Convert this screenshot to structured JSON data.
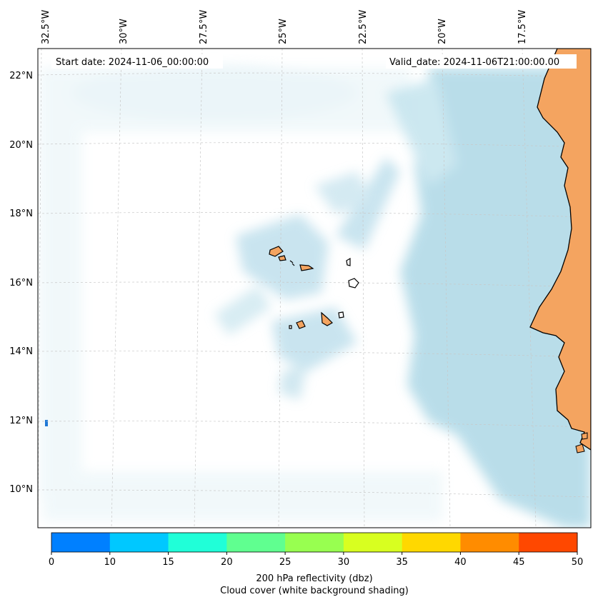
{
  "map": {
    "start_date_label": "Start date: 2024-11-06_00:00:00",
    "valid_date_label": "Valid_date: 2024-11-06T21:00:00.00",
    "lon_labels": [
      "32.5°W",
      "30°W",
      "27.5°W",
      "25°W",
      "22.5°W",
      "20°W",
      "17.5°W"
    ],
    "lat_labels": [
      "22°N",
      "20°N",
      "18°N",
      "16°N",
      "14°N",
      "12°N",
      "10°N"
    ],
    "land_color": "#f4a460",
    "cloud_color": "#add8e6",
    "ocean_color": "#ffffff"
  },
  "colorbar": {
    "ticks": [
      "0",
      "10",
      "15",
      "20",
      "25",
      "30",
      "35",
      "40",
      "45",
      "50"
    ],
    "colors": [
      "#0080ff",
      "#00c8ff",
      "#20ffd8",
      "#60ff90",
      "#98ff50",
      "#d8ff20",
      "#ffd800",
      "#ff8c00",
      "#ff4800"
    ],
    "label_line1": "200 hPa reflectivity (dbz)",
    "label_line2": "Cloud cover (white background shading)"
  }
}
